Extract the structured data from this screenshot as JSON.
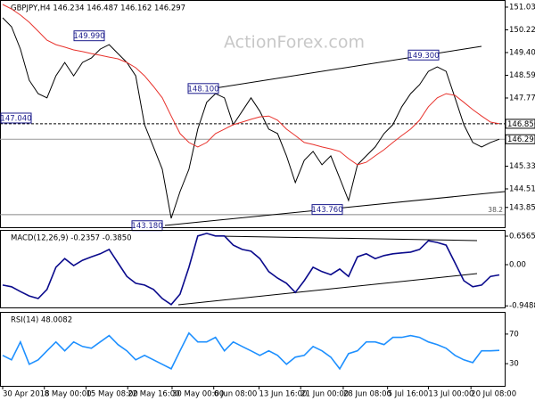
{
  "chart_data": [
    {
      "type": "line",
      "title": "GBPJPY,H4  146.234 146.487 146.162 146.297",
      "watermark": "ActionForex.com",
      "xlim": [
        0,
        56
      ],
      "ylim": [
        143.14,
        151.29
      ],
      "yticks": [
        151.035,
        {
          "value": 150.22,
          "label": "150.220"
        },
        149.405,
        {
          "value": 148.59,
          "label": "148.590"
        },
        147.775,
        {
          "value": 145.33,
          "label": "145.330"
        },
        144.515,
        {
          "value": 143.85,
          "label": "143.850"
        }
      ],
      "series": [
        {
          "name": "GBPJPY",
          "color": "#000000",
          "values": [
            150.65,
            150.33,
            149.53,
            148.41,
            147.93,
            147.78,
            148.57,
            149.05,
            148.57,
            149.05,
            149.21,
            149.53,
            149.69,
            149.37,
            149.05,
            148.57,
            146.82,
            146.02,
            145.22,
            143.46,
            144.42,
            145.22,
            146.66,
            147.62,
            147.93,
            147.78,
            146.82,
            147.3,
            147.78,
            147.3,
            146.66,
            146.5,
            145.7,
            144.74,
            145.54,
            145.86,
            145.38,
            145.7,
            144.9,
            144.1,
            145.38,
            145.7,
            146.02,
            146.5,
            146.82,
            147.46,
            147.93,
            148.25,
            148.73,
            148.89,
            148.73,
            147.78,
            146.82,
            146.18,
            146.02,
            146.18,
            146.297
          ]
        },
        {
          "name": "MA",
          "color": "#e8322c",
          "values": [
            151.13,
            150.97,
            150.75,
            150.49,
            150.17,
            149.85,
            149.69,
            149.6,
            149.5,
            149.44,
            149.37,
            149.31,
            149.24,
            149.18,
            149.05,
            148.86,
            148.57,
            148.19,
            147.78,
            147.13,
            146.5,
            146.18,
            146.02,
            146.18,
            146.5,
            146.66,
            146.82,
            146.91,
            147.01,
            147.1,
            147.13,
            146.98,
            146.66,
            146.43,
            146.18,
            146.11,
            146.02,
            145.95,
            145.86,
            145.6,
            145.38,
            145.47,
            145.7,
            145.92,
            146.18,
            146.43,
            146.66,
            146.98,
            147.46,
            147.78,
            147.93,
            147.87,
            147.62,
            147.36,
            147.13,
            146.91,
            146.85
          ]
        }
      ],
      "annotations": [
        {
          "value": 149.99,
          "label": "149.990"
        },
        {
          "value": 148.1,
          "label": "148.100"
        },
        {
          "value": 147.04,
          "label": "147.040"
        },
        {
          "value": 149.3,
          "label": "149.300"
        },
        {
          "value": 143.76,
          "label": "143.760"
        },
        {
          "value": 143.18,
          "label": "143.180"
        }
      ],
      "price_labels": [
        {
          "value": 146.85,
          "label": "146.850"
        },
        {
          "value": 146.297,
          "label": "146.297"
        }
      ],
      "fib": {
        "label": "38.2",
        "value": 143.59
      }
    },
    {
      "type": "line",
      "title": "MACD(12,26,9) -0.2357 -0.3850",
      "xlim": [
        0,
        56
      ],
      "ylim": [
        -0.985,
        0.8
      ],
      "yticks": [
        0.6565,
        {
          "value": 0,
          "label": "0.00"
        },
        -0.9488
      ],
      "series": [
        {
          "name": "MACD",
          "color": "#0a0a8c",
          "values": [
            -0.47,
            -0.51,
            -0.62,
            -0.72,
            -0.78,
            -0.57,
            -0.06,
            0.14,
            -0.02,
            0.1,
            0.18,
            0.25,
            0.35,
            0.04,
            -0.27,
            -0.43,
            -0.47,
            -0.57,
            -0.78,
            -0.92,
            -0.68,
            -0.06,
            0.66,
            0.72,
            0.66,
            0.66,
            0.45,
            0.35,
            0.31,
            0.14,
            -0.16,
            -0.31,
            -0.43,
            -0.64,
            -0.37,
            -0.06,
            -0.16,
            -0.23,
            -0.1,
            -0.27,
            0.18,
            0.25,
            0.14,
            0.21,
            0.25,
            0.27,
            0.29,
            0.35,
            0.55,
            0.51,
            0.45,
            0.04,
            -0.37,
            -0.51,
            -0.47,
            -0.27,
            -0.2357
          ]
        }
      ]
    },
    {
      "type": "line",
      "title": "RSI(14) 48.0082",
      "xlim": [
        0,
        56
      ],
      "ylim": [
        0,
        100
      ],
      "yticks": [
        70,
        30
      ],
      "xticks": [
        {
          "value": 0,
          "label": "30 Apr 2018"
        },
        {
          "value": 4.7,
          "label": "8 May 00:00"
        },
        {
          "value": 9.4,
          "label": "15 May 08:00"
        },
        {
          "value": 14.1,
          "label": "22 May 16:00"
        },
        {
          "value": 19.1,
          "label": "30 May 00:00"
        },
        {
          "value": 23.8,
          "label": "6 Jun 08:00"
        },
        {
          "value": 28.9,
          "label": "13 Jun 16:00"
        },
        {
          "value": 33.6,
          "label": "21 Jun 00:00"
        },
        {
          "value": 38.4,
          "label": "28 Jun 08:00"
        },
        {
          "value": 43.4,
          "label": "5 Jul 16:00"
        },
        {
          "value": 48,
          "label": "13 Jul 00:00"
        },
        {
          "value": 52.8,
          "label": "20 Jul 08:00"
        }
      ],
      "series": [
        {
          "name": "RSI",
          "color": "#1e90ff",
          "values": [
            41.2,
            35.2,
            59.4,
            29.1,
            35.2,
            47.3,
            59.4,
            47.3,
            59.4,
            53.3,
            50.9,
            59.4,
            67.9,
            55.8,
            47.3,
            35.2,
            41.2,
            35.2,
            29.1,
            23.0,
            47.3,
            71.5,
            59.4,
            59.4,
            65.5,
            47.3,
            59.4,
            53.3,
            47.3,
            41.2,
            47.3,
            41.2,
            29.1,
            38.8,
            41.2,
            53.3,
            47.3,
            38.8,
            23.0,
            43.6,
            47.3,
            59.4,
            59.4,
            55.8,
            65.5,
            65.5,
            67.9,
            65.5,
            59.4,
            55.8,
            50.9,
            41.2,
            35.2,
            31.5,
            47.3,
            47.3,
            48.0082
          ]
        }
      ]
    }
  ]
}
